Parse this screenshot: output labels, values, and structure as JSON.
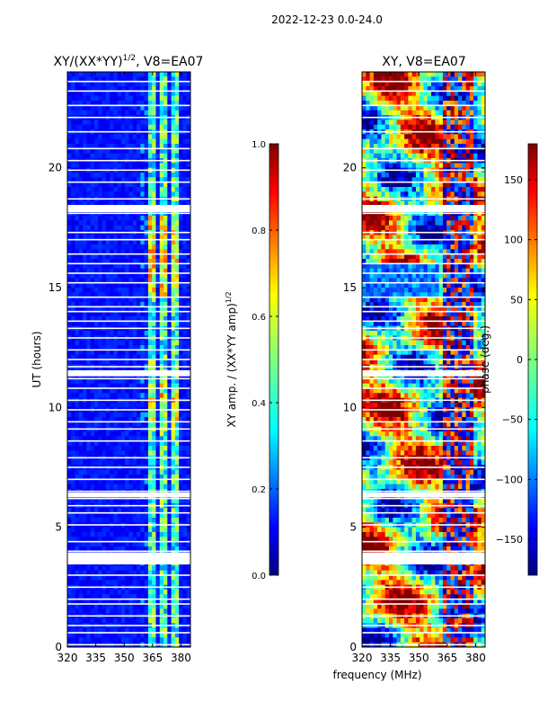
{
  "figure": {
    "suptitle": "2022-12-23 0.0-24.0",
    "shared_xlabel": "frequency (MHz)"
  },
  "chart_data": [
    {
      "type": "heatmap",
      "title": "XY/(XX*YY)",
      "title_sup": "1/2",
      "title_suffix": ", V8=EA07",
      "xlabel": "",
      "ylabel": "UT (hours)",
      "xlim": [
        320,
        385
      ],
      "ylim": [
        0,
        24
      ],
      "xticks": [
        320,
        335,
        350,
        365,
        380
      ],
      "yticks": [
        0,
        5,
        10,
        15,
        20
      ],
      "colorbar": {
        "label": "XY amp. / (XX*YY amp)",
        "label_sup": "1/2",
        "range": [
          0.0,
          1.0
        ],
        "ticks": [
          "0.0",
          "0.2",
          "0.4",
          "0.6",
          "0.8",
          "1.0"
        ],
        "tick_values": [
          0.0,
          0.2,
          0.4,
          0.6,
          0.8,
          1.0
        ],
        "colormap": "jet"
      },
      "background_value": 0.1,
      "bright_channel_bands_mhz": [
        [
          362,
          367
        ],
        [
          369,
          373
        ],
        [
          375,
          379
        ]
      ],
      "flagged_hours": [
        0.1,
        0.6,
        0.9,
        1.3,
        1.8,
        2.0,
        2.5,
        3.0,
        3.55,
        3.7,
        3.85,
        4.0,
        4.4,
        5.1,
        5.6,
        5.9,
        6.2,
        6.35,
        6.5,
        7.0,
        7.5,
        7.9,
        8.6,
        9.1,
        9.4,
        9.9,
        10.3,
        10.8,
        11.2,
        11.35,
        11.5,
        11.7,
        12.0,
        12.4,
        12.9,
        13.3,
        13.6,
        14.0,
        14.2,
        14.6,
        15.2,
        15.6,
        16.0,
        16.4,
        17.0,
        17.3,
        18.1,
        18.25,
        18.4,
        18.7,
        19.4,
        19.9,
        20.3,
        20.8,
        21.5,
        22.1,
        22.6,
        23.2,
        23.6
      ],
      "thick_flagged_spans_hours": [
        [
          3.45,
          3.95
        ],
        [
          11.3,
          11.55
        ],
        [
          18.15,
          18.45
        ],
        [
          6.25,
          6.45
        ]
      ]
    },
    {
      "type": "heatmap",
      "title": "XY, V8=EA07",
      "xlabel": "",
      "ylabel": "",
      "xlim": [
        320,
        385
      ],
      "ylim": [
        0,
        24
      ],
      "xticks": [
        320,
        335,
        350,
        365,
        380
      ],
      "yticks": [
        0,
        5,
        10,
        15,
        20
      ],
      "colorbar": {
        "label": "phase (deg.)",
        "range": [
          -180,
          180
        ],
        "ticks": [
          "−150",
          "−100",
          "−50",
          "0",
          "50",
          "100",
          "150"
        ],
        "tick_values": [
          -150,
          -100,
          -50,
          0,
          50,
          100,
          150
        ],
        "colormap": "jet"
      },
      "flagged_hours": [
        0.1,
        0.6,
        0.9,
        1.3,
        1.8,
        2.0,
        2.5,
        3.0,
        3.55,
        3.7,
        3.85,
        4.0,
        4.4,
        5.1,
        5.6,
        5.9,
        6.2,
        6.35,
        6.5,
        7.0,
        7.5,
        7.9,
        8.6,
        9.1,
        9.4,
        9.9,
        10.3,
        10.8,
        11.2,
        11.35,
        11.5,
        11.7,
        12.0,
        12.4,
        12.9,
        13.3,
        13.6,
        14.0,
        14.2,
        14.6,
        15.2,
        15.6,
        16.0,
        16.4,
        17.0,
        17.3,
        18.1,
        18.25,
        18.4,
        18.7,
        19.4,
        19.9,
        20.3,
        20.8,
        21.5,
        22.1,
        22.6,
        23.2,
        23.6
      ],
      "thick_flagged_spans_hours": [
        [
          3.45,
          3.95
        ],
        [
          11.3,
          11.55
        ],
        [
          18.15,
          18.45
        ],
        [
          6.25,
          6.45
        ]
      ]
    }
  ]
}
